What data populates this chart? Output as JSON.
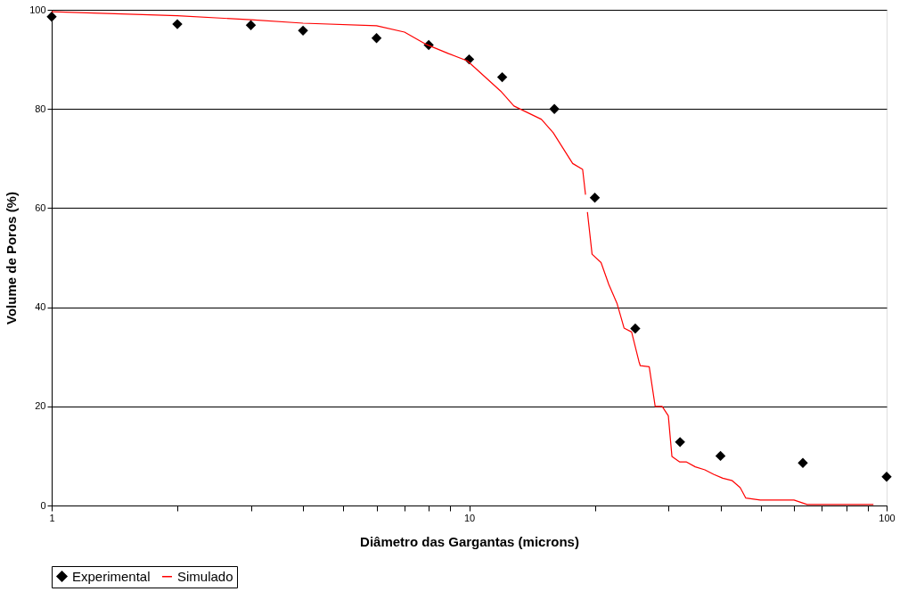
{
  "chart_data": {
    "type": "scatter",
    "xlabel": "Diâmetro das Gargantas (microns)",
    "ylabel": "Volume de Poros  (%)",
    "log": "x",
    "xlim": [
      1,
      100
    ],
    "ylim": [
      0,
      100
    ],
    "xticks": [
      1,
      {
        "value": 2,
        "label": null
      },
      {
        "value": 3,
        "label": null
      },
      {
        "value": 4,
        "label": null
      },
      {
        "value": 5,
        "label": null
      },
      {
        "value": 6,
        "label": null
      },
      {
        "value": 7,
        "label": null
      },
      {
        "value": 8,
        "label": null
      },
      {
        "value": 9,
        "label": null
      },
      10,
      {
        "value": 20,
        "label": null
      },
      {
        "value": 30,
        "label": null
      },
      {
        "value": 40,
        "label": null
      },
      {
        "value": 50,
        "label": null
      },
      {
        "value": 60,
        "label": null
      },
      {
        "value": 70,
        "label": null
      },
      {
        "value": 80,
        "label": null
      },
      {
        "value": 90,
        "label": null
      },
      100
    ],
    "yticks": [
      0,
      20,
      40,
      60,
      80,
      100
    ],
    "grid": "y",
    "legend": "bottom",
    "series": [
      {
        "name": "Experimental",
        "marker": "diamond",
        "color": "#000000",
        "x": [
          1,
          2,
          3,
          4,
          6,
          8,
          10,
          12,
          16,
          20,
          25,
          32,
          40,
          63,
          100
        ],
        "values": [
          98.6,
          97.1,
          96.9,
          95.8,
          94.3,
          92.9,
          90,
          86.4,
          80,
          62.1,
          35.7,
          12.8,
          10,
          8.6,
          5.8
        ]
      },
      {
        "name": "Simulado",
        "type": "line",
        "marker": "none",
        "line_style": "solid",
        "color": "#ff0000",
        "x": [
          1,
          2,
          3,
          4,
          6,
          7,
          7.9,
          8.9,
          9.9,
          11.9,
          12.8,
          14.9,
          15.9,
          17.7,
          18.7,
          19,
          19.1,
          19.2,
          19.7,
          20.7,
          21.6,
          22.6,
          23.5,
          24.5,
          25.5,
          25.7,
          27,
          27.9,
          29,
          30,
          30.6,
          31.9,
          33.1,
          34.8,
          36.7,
          38.5,
          40.5,
          42.7,
          44.6,
          46,
          49.8,
          60,
          64.5,
          93
        ],
        "values": [
          99.6,
          98.8,
          98,
          97.3,
          96.8,
          95.5,
          93,
          91.2,
          89.7,
          83.6,
          80.6,
          77.9,
          75.2,
          69,
          67.8,
          62.7,
          null,
          59.2,
          50.7,
          49,
          44.6,
          40.8,
          35.8,
          35,
          29.1,
          28.2,
          28,
          20,
          20,
          18.1,
          9.9,
          8.8,
          8.8,
          7.8,
          7.2,
          6.3,
          5.5,
          5,
          3.6,
          1.5,
          1.1,
          1.1,
          0.2,
          0.2
        ]
      }
    ]
  }
}
